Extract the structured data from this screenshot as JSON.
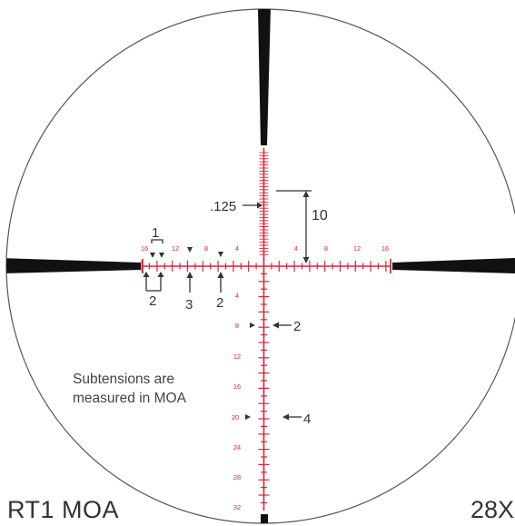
{
  "reticle": {
    "name": "RT1 MOA",
    "magnification": "28X",
    "note_lines": [
      "Subtensions are",
      "measured in MOA"
    ],
    "colors": {
      "reticle_red": "#d7263d",
      "post_black": "#111111",
      "circle": "#555555",
      "annotation": "#333333"
    },
    "horizontal_labels": [
      "16",
      "12",
      "8",
      "4",
      "4",
      "8",
      "12",
      "16"
    ],
    "vertical_labels": [
      "4",
      "8",
      "12",
      "16",
      "20",
      "24",
      "28",
      "32"
    ],
    "callouts": {
      "fine_tick": ".125",
      "post_gap": "10",
      "hash_width": "1",
      "bracket": "2",
      "left_3": "3",
      "left_2": "2",
      "vert_2": "2",
      "vert_4": "4"
    }
  }
}
